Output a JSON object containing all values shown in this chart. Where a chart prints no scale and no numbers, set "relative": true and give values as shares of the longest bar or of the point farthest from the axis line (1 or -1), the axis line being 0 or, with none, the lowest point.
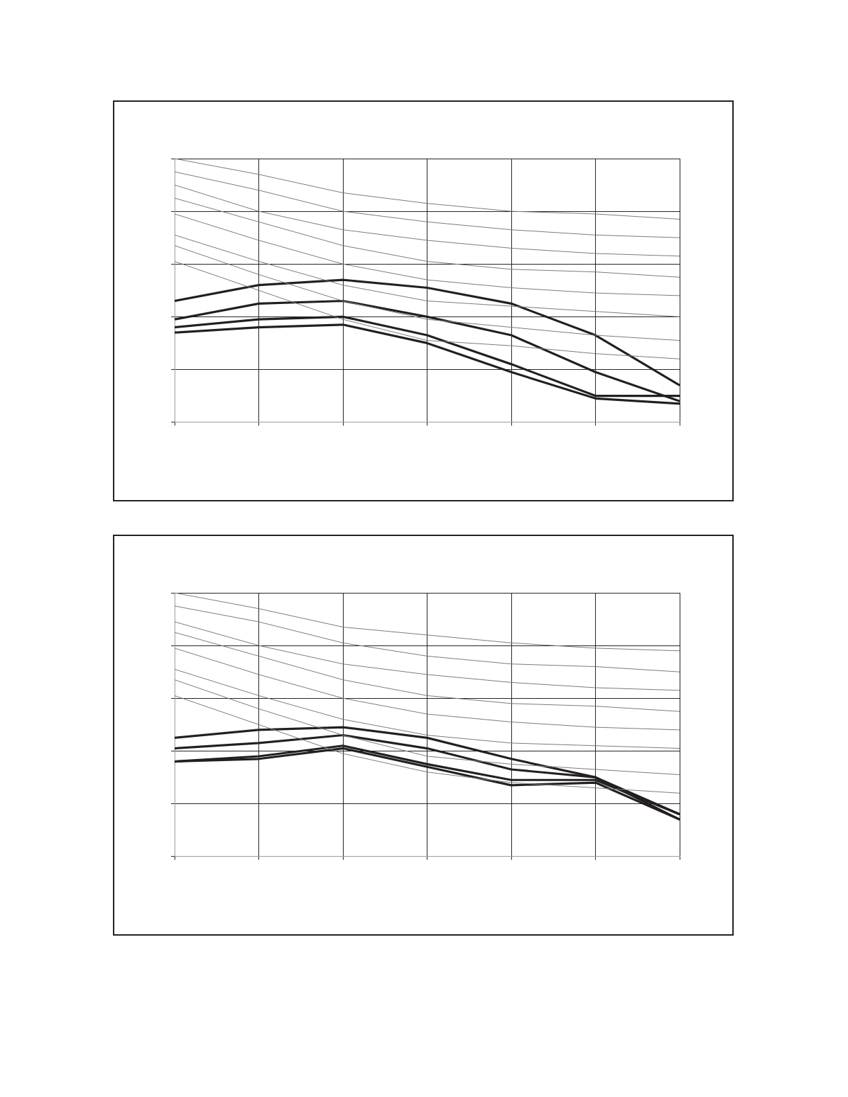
{
  "chart_data": [
    {
      "type": "line",
      "relative": true,
      "grid": true,
      "marker": "none",
      "line_style": "solid",
      "legend": false,
      "categories": [
        null,
        null,
        null,
        null,
        null,
        null,
        null
      ],
      "series": [
        {
          "color": "#7a7a7a",
          "values": [
            1,
            0.94,
            0.87,
            0.83,
            0.8,
            0.79,
            0.77
          ]
        },
        {
          "color": "#7a7a7a",
          "values": [
            0.95,
            0.88,
            0.8,
            0.76,
            0.73,
            0.71,
            0.7
          ]
        },
        {
          "color": "#7a7a7a",
          "values": [
            0.9,
            0.8,
            0.73,
            0.69,
            0.66,
            0.64,
            0.63
          ]
        },
        {
          "color": "#7a7a7a",
          "values": [
            0.85,
            0.76,
            0.67,
            0.61,
            0.58,
            0.57,
            0.55
          ]
        },
        {
          "color": "#7a7a7a",
          "values": [
            0.79,
            0.69,
            0.6,
            0.54,
            0.51,
            0.49,
            0.48
          ]
        },
        {
          "color": "#7a7a7a",
          "values": [
            0.71,
            0.61,
            0.52,
            0.46,
            0.44,
            0.42,
            0.4
          ]
        },
        {
          "color": "#7a7a7a",
          "values": [
            0.67,
            0.56,
            0.46,
            0.39,
            0.36,
            0.33,
            0.31
          ]
        },
        {
          "color": "#7a7a7a",
          "values": [
            0.61,
            0.5,
            0.39,
            0.31,
            0.29,
            0.26,
            0.24
          ]
        },
        {
          "color": "#231f20",
          "values": [
            0.46,
            0.52,
            0.54,
            0.51,
            0.45,
            0.33,
            0.14
          ]
        },
        {
          "color": "#231f20",
          "values": [
            0.39,
            0.45,
            0.46,
            0.4,
            0.33,
            0.19,
            0.08
          ]
        },
        {
          "color": "#231f20",
          "values": [
            0.36,
            0.39,
            0.4,
            0.33,
            0.22,
            0.1,
            0.1
          ]
        },
        {
          "color": "#231f20",
          "values": [
            0.34,
            0.36,
            0.37,
            0.3,
            0.19,
            0.09,
            0.07
          ]
        }
      ]
    },
    {
      "type": "line",
      "relative": true,
      "grid": true,
      "marker": "none",
      "line_style": "solid",
      "legend": false,
      "categories": [
        null,
        null,
        null,
        null,
        null,
        null,
        null
      ],
      "series": [
        {
          "color": "#7a7a7a",
          "values": [
            1,
            0.94,
            0.87,
            0.84,
            0.81,
            0.79,
            0.78
          ]
        },
        {
          "color": "#7a7a7a",
          "values": [
            0.95,
            0.89,
            0.81,
            0.76,
            0.73,
            0.72,
            0.7
          ]
        },
        {
          "color": "#7a7a7a",
          "values": [
            0.89,
            0.8,
            0.73,
            0.69,
            0.66,
            0.64,
            0.63
          ]
        },
        {
          "color": "#7a7a7a",
          "values": [
            0.85,
            0.76,
            0.67,
            0.61,
            0.58,
            0.57,
            0.55
          ]
        },
        {
          "color": "#7a7a7a",
          "values": [
            0.79,
            0.69,
            0.6,
            0.54,
            0.51,
            0.49,
            0.48
          ]
        },
        {
          "color": "#7a7a7a",
          "values": [
            0.71,
            0.61,
            0.52,
            0.46,
            0.43,
            0.42,
            0.41
          ]
        },
        {
          "color": "#7a7a7a",
          "values": [
            0.67,
            0.56,
            0.46,
            0.38,
            0.35,
            0.33,
            0.31
          ]
        },
        {
          "color": "#7a7a7a",
          "values": [
            0.61,
            0.5,
            0.39,
            0.32,
            0.28,
            0.26,
            0.24
          ]
        },
        {
          "color": "#231f20",
          "values": [
            0.45,
            0.48,
            0.49,
            0.45,
            0.37,
            0.3,
            0.16
          ]
        },
        {
          "color": "#231f20",
          "values": [
            0.41,
            0.43,
            0.46,
            0.41,
            0.33,
            0.3,
            0.14
          ]
        },
        {
          "color": "#231f20",
          "values": [
            0.36,
            0.38,
            0.42,
            0.35,
            0.29,
            0.29,
            0.16
          ]
        },
        {
          "color": "#231f20",
          "values": [
            0.36,
            0.37,
            0.41,
            0.34,
            0.27,
            0.28,
            0.14
          ]
        }
      ]
    }
  ]
}
